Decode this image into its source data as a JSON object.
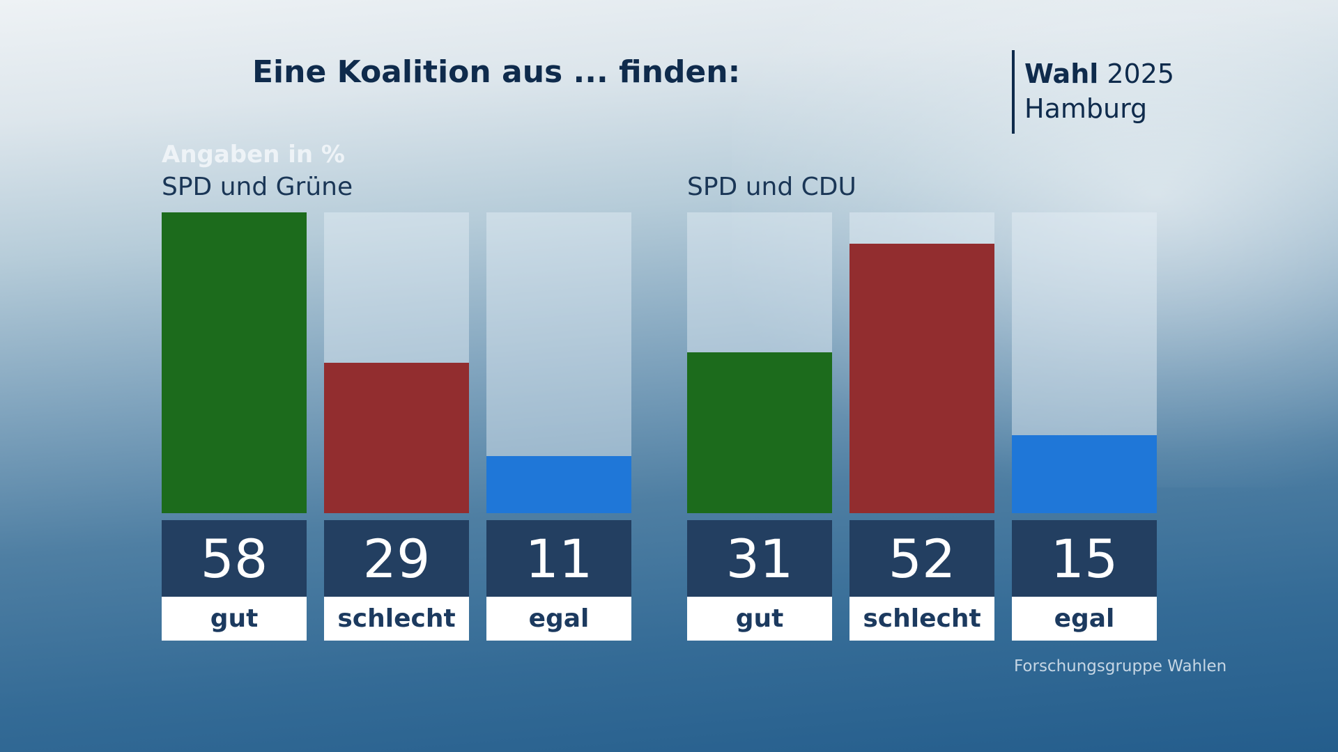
{
  "header": {
    "title": "Eine Koalition aus ... finden:",
    "brand_bold": "Wahl",
    "brand_year": "2025",
    "brand_region": "Hamburg"
  },
  "chart_data": [
    {
      "type": "bar",
      "title": "SPD und Grüne",
      "unit_label": "Angaben in %",
      "categories": [
        "gut",
        "schlecht",
        "egal"
      ],
      "values": [
        58,
        29,
        11
      ],
      "colors": [
        "#1c6b1c",
        "#922d2f",
        "#1f77d8"
      ],
      "ylim": [
        0,
        58
      ]
    },
    {
      "type": "bar",
      "title": "SPD und CDU",
      "categories": [
        "gut",
        "schlecht",
        "egal"
      ],
      "values": [
        31,
        52,
        15
      ],
      "colors": [
        "#1c6b1c",
        "#922d2f",
        "#1f77d8"
      ],
      "ylim": [
        0,
        58
      ]
    }
  ],
  "footer": {
    "source": "Forschungsgruppe Wahlen"
  }
}
